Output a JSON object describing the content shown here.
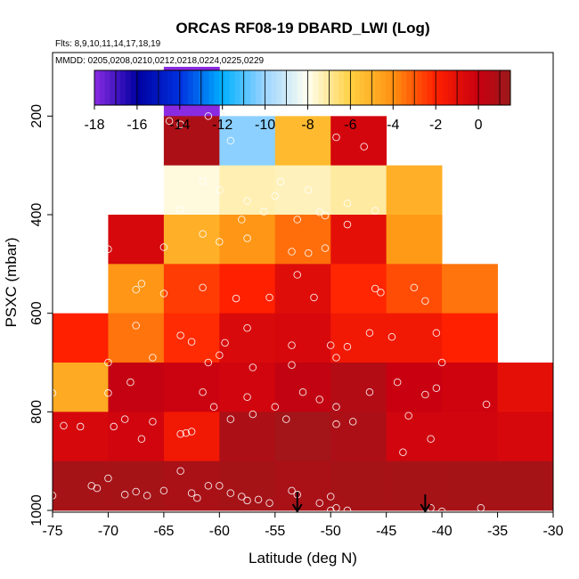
{
  "chart_data": {
    "type": "heatmap",
    "title": "ORCAS RF08-19 DBARD_LWI (Log)",
    "subtitle_flights": "Flts: 8,9,10,11,14,17,18,19",
    "subtitle_dates": "MMDD: 0205,0208,0210,0212,0218,0224,0225,0229",
    "xlabel": "Latitude (deg N)",
    "ylabel": "PSXC (mbar)",
    "xlim": [
      -75,
      -30
    ],
    "ylim": [
      1000,
      100
    ],
    "x_ticks": [
      -75,
      -70,
      -65,
      -60,
      -55,
      -50,
      -45,
      -40,
      -35,
      -30
    ],
    "y_ticks": [
      200,
      400,
      600,
      800,
      1000
    ],
    "colorbar": {
      "range": [
        -18,
        1.5
      ],
      "ticks": [
        -18,
        -16,
        -14,
        -12,
        -10,
        -8,
        -6,
        -4,
        -2,
        0
      ],
      "stops": [
        {
          "v": -18,
          "color": "#8a2be2"
        },
        {
          "v": -16,
          "color": "#0000a0"
        },
        {
          "v": -14,
          "color": "#0030e0"
        },
        {
          "v": -12,
          "color": "#00b0ff"
        },
        {
          "v": -10,
          "color": "#9cd4ff"
        },
        {
          "v": -8,
          "color": "#fffff0"
        },
        {
          "v": -6,
          "color": "#ffd040"
        },
        {
          "v": -4,
          "color": "#ff9010"
        },
        {
          "v": -2,
          "color": "#ff2000"
        },
        {
          "v": 0,
          "color": "#c80010"
        },
        {
          "v": 1.5,
          "color": "#9a1a1a"
        }
      ]
    },
    "cell_size": {
      "dlat": 5,
      "dp": 100
    },
    "cells": [
      {
        "lat": -65,
        "p": 100,
        "v": -18
      },
      {
        "lat": -65,
        "p": 200,
        "v": 0.9
      },
      {
        "lat": -60,
        "p": 200,
        "v": -10.2
      },
      {
        "lat": -55,
        "p": 200,
        "v": -5.3
      },
      {
        "lat": -50,
        "p": 200,
        "v": -0.4
      },
      {
        "lat": -65,
        "p": 300,
        "v": -7.8
      },
      {
        "lat": -60,
        "p": 300,
        "v": -7.3
      },
      {
        "lat": -55,
        "p": 300,
        "v": -7.4
      },
      {
        "lat": -50,
        "p": 300,
        "v": -7.1
      },
      {
        "lat": -45,
        "p": 300,
        "v": -5.0
      },
      {
        "lat": -70,
        "p": 400,
        "v": -0.5
      },
      {
        "lat": -65,
        "p": 400,
        "v": -5.0
      },
      {
        "lat": -60,
        "p": 400,
        "v": -4.2
      },
      {
        "lat": -55,
        "p": 400,
        "v": -3.4
      },
      {
        "lat": -50,
        "p": 400,
        "v": -1.0
      },
      {
        "lat": -45,
        "p": 400,
        "v": -4.3
      },
      {
        "lat": -70,
        "p": 500,
        "v": -4.2
      },
      {
        "lat": -65,
        "p": 500,
        "v": -2.5
      },
      {
        "lat": -60,
        "p": 500,
        "v": -2.0
      },
      {
        "lat": -55,
        "p": 500,
        "v": -0.8
      },
      {
        "lat": -50,
        "p": 500,
        "v": -2.1
      },
      {
        "lat": -45,
        "p": 500,
        "v": -2.8
      },
      {
        "lat": -40,
        "p": 500,
        "v": -3.5
      },
      {
        "lat": -75,
        "p": 600,
        "v": -2.0
      },
      {
        "lat": -70,
        "p": 600,
        "v": -3.5
      },
      {
        "lat": -65,
        "p": 600,
        "v": -2.2
      },
      {
        "lat": -60,
        "p": 600,
        "v": -0.6
      },
      {
        "lat": -55,
        "p": 600,
        "v": -0.5
      },
      {
        "lat": -50,
        "p": 600,
        "v": -1.5
      },
      {
        "lat": -45,
        "p": 600,
        "v": -1.5
      },
      {
        "lat": -40,
        "p": 600,
        "v": -2.0
      },
      {
        "lat": -75,
        "p": 700,
        "v": -4.8
      },
      {
        "lat": -70,
        "p": 700,
        "v": 0.1
      },
      {
        "lat": -65,
        "p": 700,
        "v": -0.1
      },
      {
        "lat": -60,
        "p": 700,
        "v": -0.3
      },
      {
        "lat": -55,
        "p": 700,
        "v": 0.2
      },
      {
        "lat": -50,
        "p": 700,
        "v": 0.7
      },
      {
        "lat": -45,
        "p": 700,
        "v": 0.0
      },
      {
        "lat": -40,
        "p": 700,
        "v": -0.2
      },
      {
        "lat": -35,
        "p": 700,
        "v": -1.0
      },
      {
        "lat": -75,
        "p": 800,
        "v": -0.5
      },
      {
        "lat": -70,
        "p": 800,
        "v": -0.3
      },
      {
        "lat": -65,
        "p": 800,
        "v": -1.5
      },
      {
        "lat": -60,
        "p": 800,
        "v": 0.9
      },
      {
        "lat": -55,
        "p": 800,
        "v": 1.2
      },
      {
        "lat": -50,
        "p": 800,
        "v": 0.9
      },
      {
        "lat": -45,
        "p": 800,
        "v": -0.3
      },
      {
        "lat": -40,
        "p": 800,
        "v": -0.3
      },
      {
        "lat": -35,
        "p": 800,
        "v": -0.5
      },
      {
        "lat": -75,
        "p": 900,
        "v": 1.1
      },
      {
        "lat": -70,
        "p": 900,
        "v": 1.1
      },
      {
        "lat": -65,
        "p": 900,
        "v": 1.0
      },
      {
        "lat": -60,
        "p": 900,
        "v": 1.1
      },
      {
        "lat": -55,
        "p": 900,
        "v": 1.0
      },
      {
        "lat": -50,
        "p": 900,
        "v": 1.1
      },
      {
        "lat": -45,
        "p": 900,
        "v": 1.1
      },
      {
        "lat": -40,
        "p": 900,
        "v": 1.1
      },
      {
        "lat": -35,
        "p": 900,
        "v": 1.1
      }
    ],
    "arrows_lat": [
      -53,
      -41.5
    ],
    "points": [
      [
        -64.5,
        210
      ],
      [
        -63.5,
        217
      ],
      [
        -61,
        200
      ],
      [
        -59,
        250
      ],
      [
        -61.5,
        332
      ],
      [
        -63.5,
        390
      ],
      [
        -60,
        350
      ],
      [
        -57.5,
        372
      ],
      [
        -55,
        362
      ],
      [
        -54.5,
        333
      ],
      [
        -52,
        350
      ],
      [
        -51,
        395
      ],
      [
        -48.5,
        377
      ],
      [
        -46,
        392
      ],
      [
        -47,
        262
      ],
      [
        -49.5,
        243
      ],
      [
        -58,
        410
      ],
      [
        -56,
        394
      ],
      [
        -53,
        410
      ],
      [
        -50.5,
        402
      ],
      [
        -48.5,
        420
      ],
      [
        -53.5,
        475
      ],
      [
        -52,
        478
      ],
      [
        -50.5,
        468
      ],
      [
        -57.5,
        448
      ],
      [
        -60,
        455
      ],
      [
        -61.5,
        439
      ],
      [
        -65,
        466
      ],
      [
        -70,
        470
      ],
      [
        -67,
        540
      ],
      [
        -67.5,
        552
      ],
      [
        -65,
        560
      ],
      [
        -61.5,
        548
      ],
      [
        -58.5,
        570
      ],
      [
        -55.5,
        568
      ],
      [
        -53,
        522
      ],
      [
        -51.5,
        568
      ],
      [
        -46,
        550
      ],
      [
        -45.5,
        558
      ],
      [
        -42.5,
        548
      ],
      [
        -41.5,
        575
      ],
      [
        -73,
        582
      ],
      [
        -67.5,
        625
      ],
      [
        -66,
        690
      ],
      [
        -63.5,
        645
      ],
      [
        -62.5,
        658
      ],
      [
        -61,
        700
      ],
      [
        -60,
        685
      ],
      [
        -59.5,
        660
      ],
      [
        -57.5,
        630
      ],
      [
        -57,
        710
      ],
      [
        -53.5,
        665
      ],
      [
        -53.5,
        705
      ],
      [
        -50,
        665
      ],
      [
        -49.5,
        690
      ],
      [
        -48.5,
        668
      ],
      [
        -46.5,
        640
      ],
      [
        -44.5,
        648
      ],
      [
        -40.5,
        640
      ],
      [
        -40,
        700
      ],
      [
        -70,
        700
      ],
      [
        -70,
        762
      ],
      [
        -68,
        740
      ],
      [
        -66,
        820
      ],
      [
        -67,
        855
      ],
      [
        -61.5,
        760
      ],
      [
        -60.5,
        790
      ],
      [
        -59,
        815
      ],
      [
        -57.5,
        770
      ],
      [
        -57,
        805
      ],
      [
        -55,
        790
      ],
      [
        -54,
        815
      ],
      [
        -52.5,
        760
      ],
      [
        -51,
        775
      ],
      [
        -49.5,
        790
      ],
      [
        -49.5,
        825
      ],
      [
        -48,
        820
      ],
      [
        -46.5,
        760
      ],
      [
        -44,
        740
      ],
      [
        -43,
        808
      ],
      [
        -41.5,
        765
      ],
      [
        -40.5,
        752
      ],
      [
        -36,
        785
      ],
      [
        -43.5,
        882
      ],
      [
        -41,
        855
      ],
      [
        -63.5,
        845
      ],
      [
        -63,
        843
      ],
      [
        -62.5,
        840
      ],
      [
        -72.5,
        830
      ],
      [
        -69.5,
        830
      ],
      [
        -68.5,
        815
      ],
      [
        -74,
        828
      ],
      [
        -75,
        762
      ],
      [
        -71.5,
        950
      ],
      [
        -71,
        955
      ],
      [
        -70,
        935
      ],
      [
        -68.5,
        968
      ],
      [
        -67.5,
        962
      ],
      [
        -66.5,
        970
      ],
      [
        -65,
        960
      ],
      [
        -63.5,
        920
      ],
      [
        -62.5,
        965
      ],
      [
        -62,
        975
      ],
      [
        -61,
        950
      ],
      [
        -60,
        950
      ],
      [
        -59,
        965
      ],
      [
        -58,
        972
      ],
      [
        -57.5,
        980
      ],
      [
        -56.5,
        978
      ],
      [
        -55.5,
        985
      ],
      [
        -53.5,
        960
      ],
      [
        -53,
        968
      ],
      [
        -51,
        985
      ],
      [
        -50,
        972
      ],
      [
        -50,
        1000
      ],
      [
        -49.5,
        995
      ],
      [
        -48.5,
        1000
      ],
      [
        -41,
        995
      ],
      [
        -40,
        1002
      ],
      [
        -36.5,
        995
      ],
      [
        -75,
        970
      ]
    ]
  }
}
